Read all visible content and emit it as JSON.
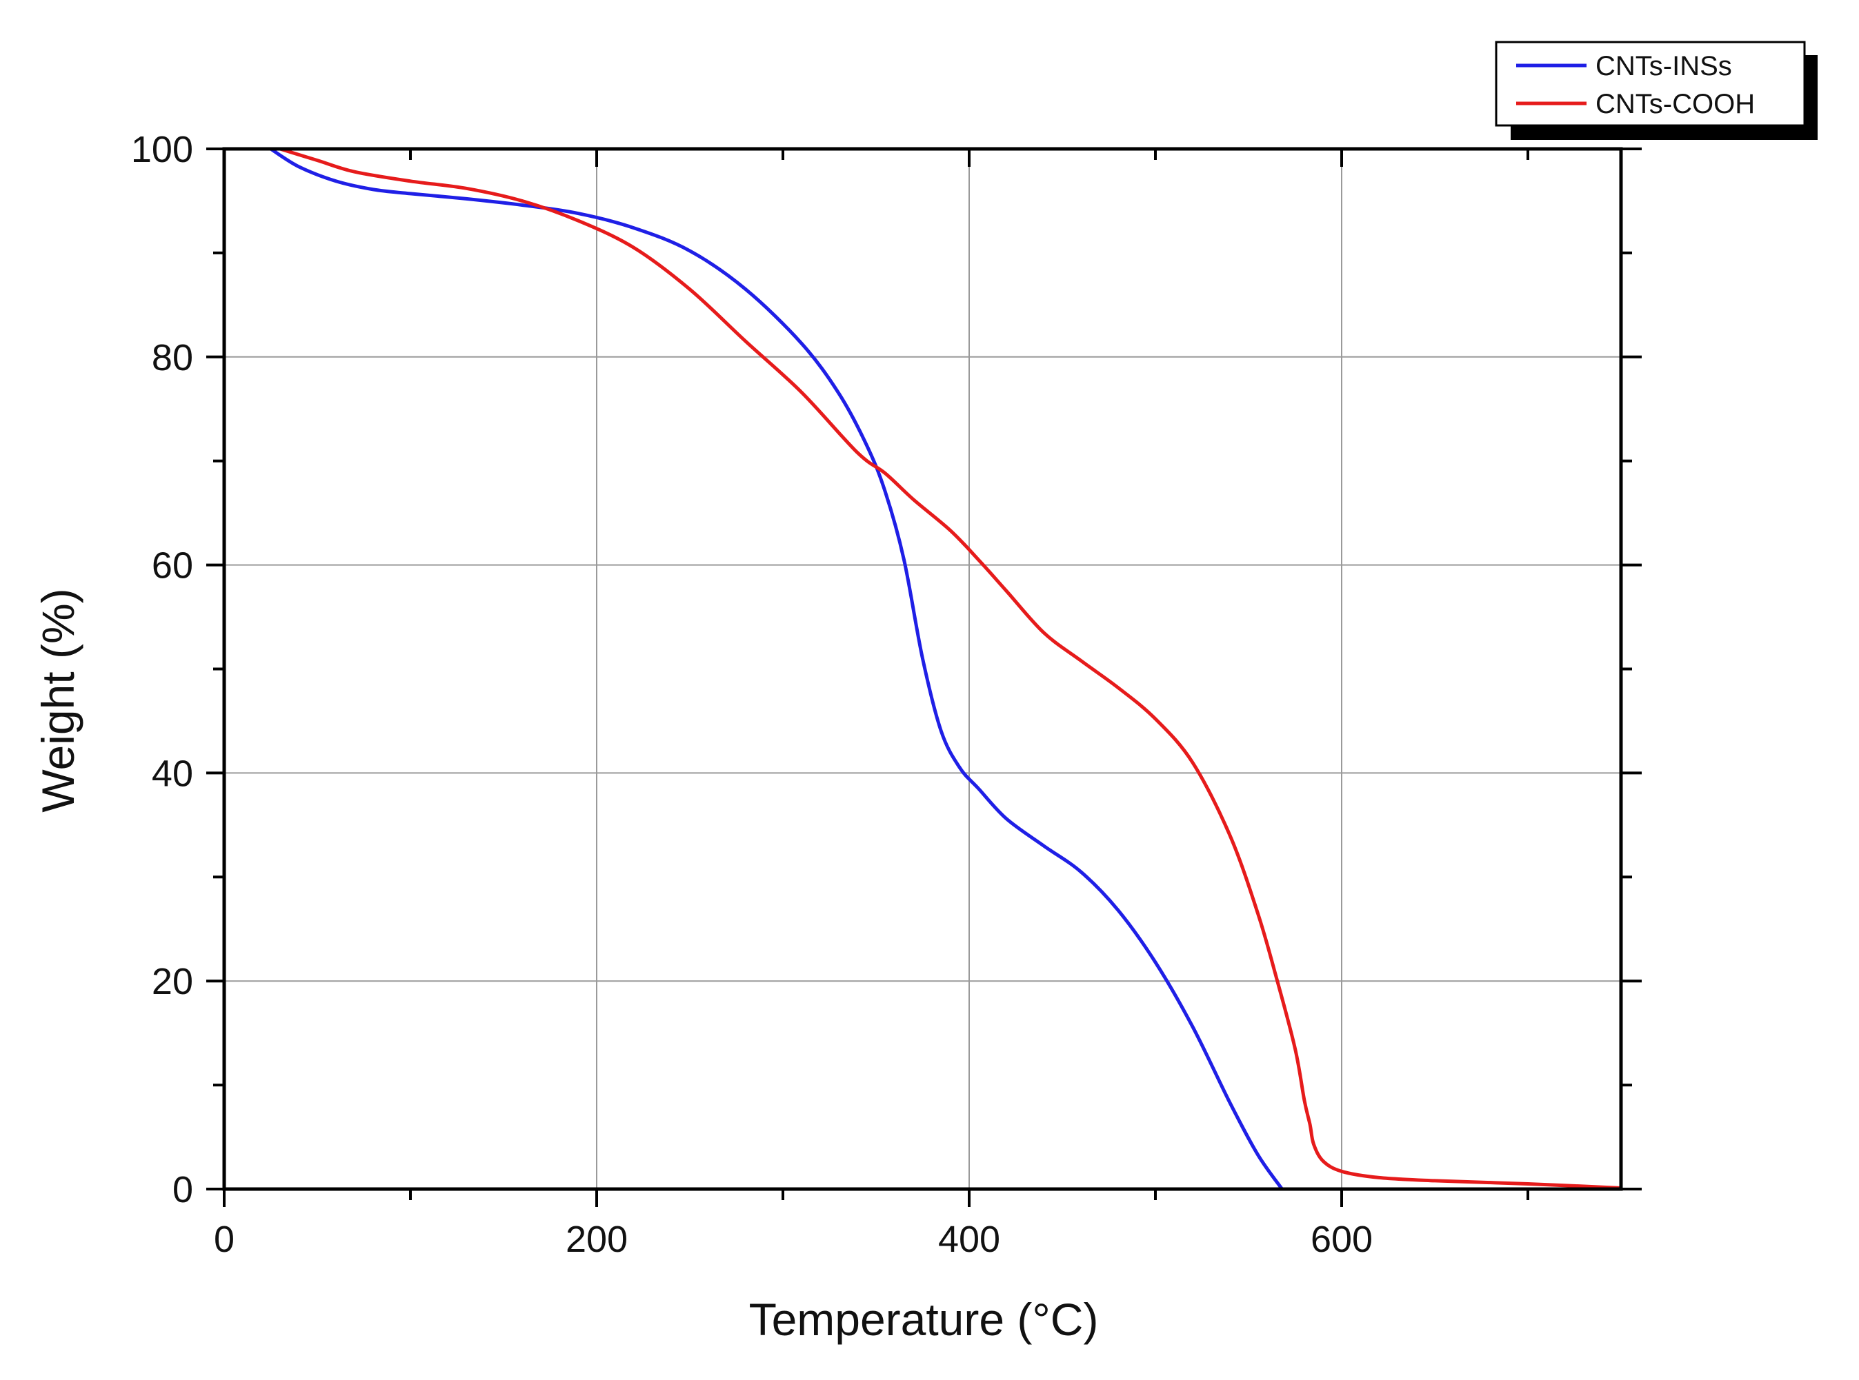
{
  "chart_data": {
    "type": "line",
    "xlabel": "Temperature (°C)",
    "ylabel": "Weight (%)",
    "xlim": [
      0,
      750
    ],
    "ylim": [
      0,
      100
    ],
    "x_ticks": [
      0,
      200,
      400,
      600
    ],
    "y_ticks": [
      0,
      20,
      40,
      60,
      80,
      100
    ],
    "x_minor_ticks": [
      100,
      300,
      500,
      700
    ],
    "y_minor_ticks": [
      10,
      30,
      50,
      70,
      90
    ],
    "grid": true,
    "legend_position": "top-right",
    "series": [
      {
        "name": "CNTs-INSs",
        "color": "#1f1fe6",
        "x": [
          25,
          40,
          60,
          80,
          100,
          130,
          160,
          190,
          220,
          250,
          280,
          310,
          330,
          345,
          355,
          365,
          375,
          385,
          395,
          405,
          420,
          440,
          460,
          480,
          500,
          520,
          540,
          555,
          568
        ],
        "y": [
          100,
          98.3,
          96.9,
          96.1,
          95.7,
          95.2,
          94.6,
          93.8,
          92.4,
          90.2,
          86.5,
          81.3,
          76.5,
          71.5,
          67,
          60.5,
          51,
          44,
          40.5,
          38.5,
          35.6,
          33,
          30.5,
          26.8,
          21.8,
          15.6,
          8.3,
          3.3,
          0
        ]
      },
      {
        "name": "CNTs-COOH",
        "color": "#e61b1b",
        "x": [
          30,
          50,
          70,
          100,
          130,
          160,
          190,
          220,
          250,
          280,
          310,
          340,
          355,
          370,
          390,
          405,
          420,
          440,
          460,
          480,
          500,
          520,
          540,
          555,
          565,
          575,
          580,
          583,
          585,
          590,
          600,
          620,
          650,
          700,
          750
        ],
        "y": [
          100,
          98.9,
          97.8,
          96.9,
          96.2,
          95,
          93.1,
          90.5,
          86.5,
          81.5,
          76.6,
          70.8,
          68.8,
          66.3,
          63.3,
          60.5,
          57.5,
          53.5,
          50.8,
          48.2,
          45.2,
          41,
          34,
          26.5,
          20.3,
          13.5,
          8.5,
          6.2,
          4.3,
          2.7,
          1.7,
          1.1,
          0.8,
          0.5,
          0.1
        ]
      }
    ]
  }
}
